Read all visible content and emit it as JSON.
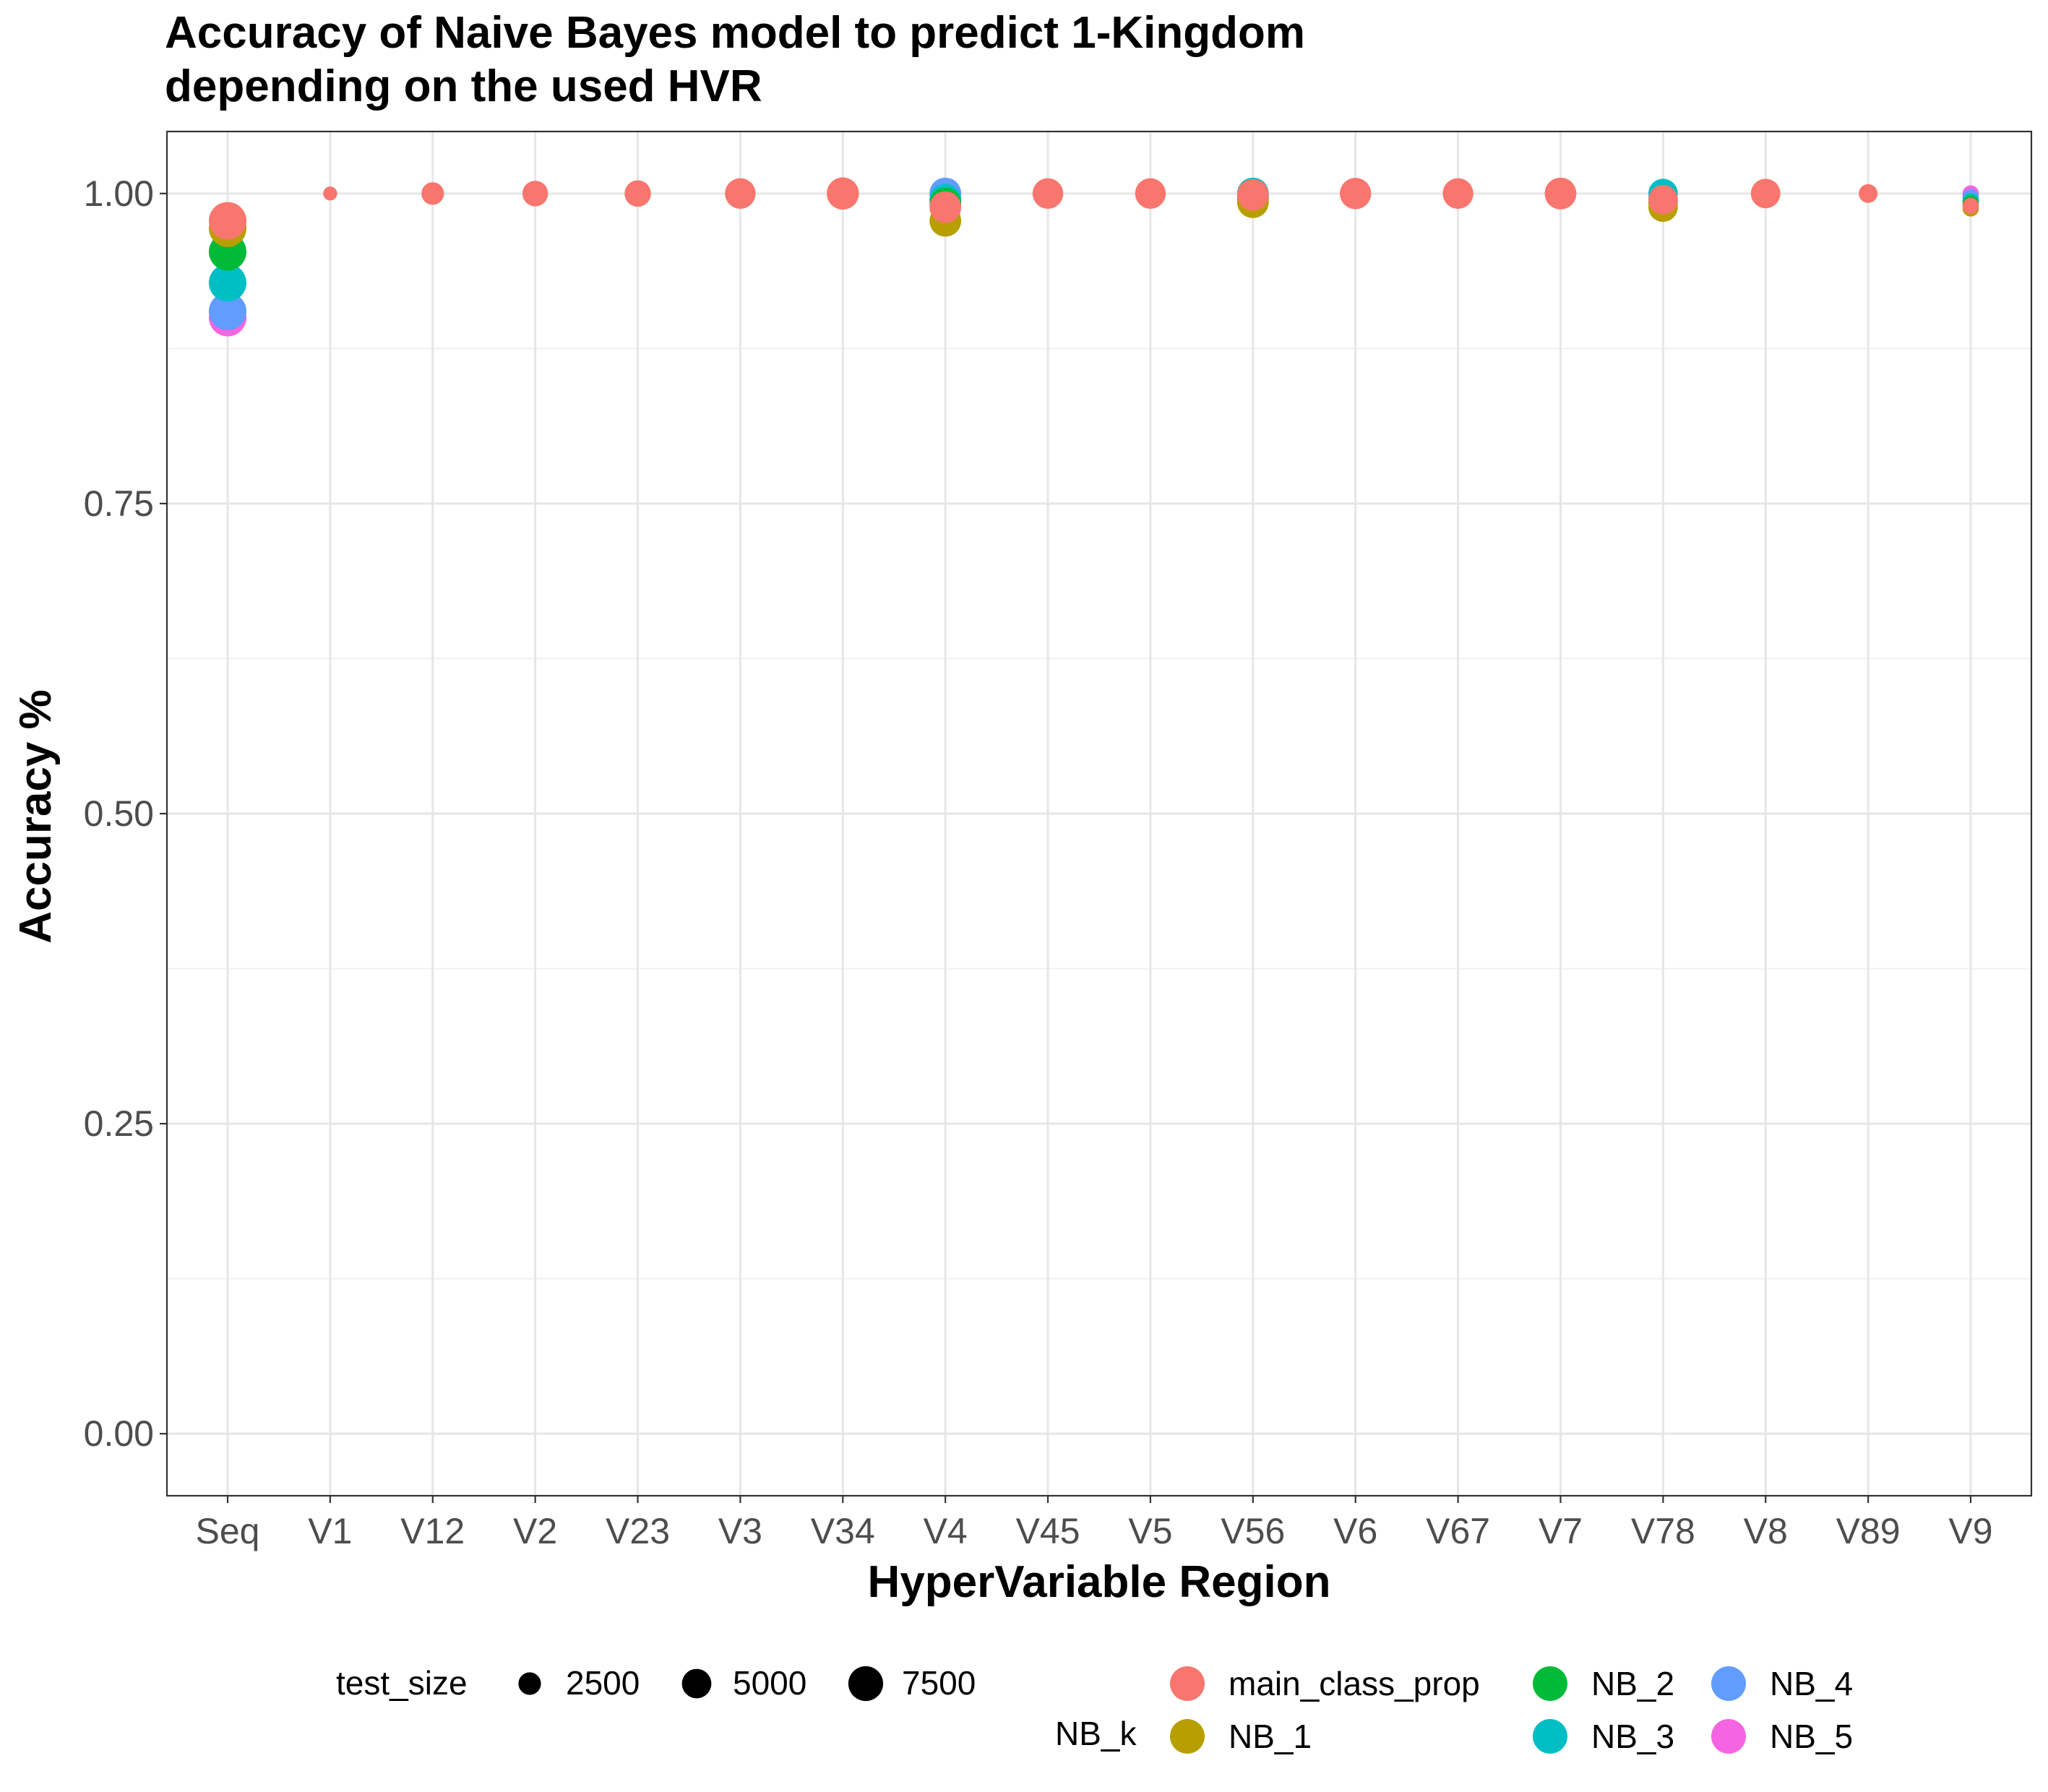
{
  "chart_data": {
    "type": "scatter",
    "title_line1": "Accuracy of Naive Bayes model to predict 1-Kingdom",
    "title_line2": "depending on the used HVR",
    "xlabel": "HyperVariable Region",
    "ylabel": "Accuracy %",
    "categories": [
      "Seq",
      "V1",
      "V12",
      "V2",
      "V23",
      "V3",
      "V34",
      "V4",
      "V45",
      "V5",
      "V56",
      "V6",
      "V67",
      "V7",
      "V78",
      "V8",
      "V89",
      "V9"
    ],
    "y_ticks": [
      "0.00",
      "0.25",
      "0.50",
      "0.75",
      "1.00"
    ],
    "ylim": [
      -0.05,
      1.05
    ],
    "grid": true,
    "size_legend": {
      "title": "test_size",
      "entries": [
        {
          "label": "2500",
          "value": 2500
        },
        {
          "label": "5000",
          "value": 5000
        },
        {
          "label": "7500",
          "value": 7500
        }
      ]
    },
    "color_legend": {
      "title": "NB_k",
      "entries": [
        {
          "label": "main_class_prop",
          "color": "#F8766D"
        },
        {
          "label": "NB_1",
          "color": "#B79F00"
        },
        {
          "label": "NB_2",
          "color": "#00BA38"
        },
        {
          "label": "NB_3",
          "color": "#00BFC4"
        },
        {
          "label": "NB_4",
          "color": "#619CFF"
        },
        {
          "label": "NB_5",
          "color": "#F564E3"
        }
      ]
    },
    "series": [
      {
        "name": "NB_5",
        "color": "#F564E3",
        "points": [
          {
            "x": "Seq",
            "y": 0.9,
            "size": 9000
          },
          {
            "x": "V4",
            "y": 0.995,
            "size": 6000
          },
          {
            "x": "V56",
            "y": 0.998,
            "size": 6000
          },
          {
            "x": "V78",
            "y": 0.995,
            "size": 5000
          },
          {
            "x": "V9",
            "y": 1.0,
            "size": 1000
          }
        ]
      },
      {
        "name": "NB_4",
        "color": "#619CFF",
        "points": [
          {
            "x": "Seq",
            "y": 0.905,
            "size": 9000
          },
          {
            "x": "V4",
            "y": 1.0,
            "size": 6000
          },
          {
            "x": "V56",
            "y": 0.998,
            "size": 6000
          },
          {
            "x": "V78",
            "y": 0.995,
            "size": 5000
          },
          {
            "x": "V9",
            "y": 0.997,
            "size": 1000
          }
        ]
      },
      {
        "name": "NB_3",
        "color": "#00BFC4",
        "points": [
          {
            "x": "Seq",
            "y": 0.928,
            "size": 9000
          },
          {
            "x": "V4",
            "y": 0.995,
            "size": 6000
          },
          {
            "x": "V56",
            "y": 1.0,
            "size": 6000
          },
          {
            "x": "V78",
            "y": 1.0,
            "size": 5000
          },
          {
            "x": "V9",
            "y": 0.994,
            "size": 1000
          }
        ]
      },
      {
        "name": "NB_2",
        "color": "#00BA38",
        "points": [
          {
            "x": "Seq",
            "y": 0.953,
            "size": 9000
          },
          {
            "x": "V4",
            "y": 0.992,
            "size": 6000
          },
          {
            "x": "V56",
            "y": 0.996,
            "size": 6000
          },
          {
            "x": "V78",
            "y": 0.993,
            "size": 5000
          },
          {
            "x": "V9",
            "y": 0.992,
            "size": 1000
          }
        ]
      },
      {
        "name": "NB_1",
        "color": "#B79F00",
        "points": [
          {
            "x": "Seq",
            "y": 0.972,
            "size": 9000
          },
          {
            "x": "V4",
            "y": 0.978,
            "size": 6000
          },
          {
            "x": "V56",
            "y": 0.993,
            "size": 6000
          },
          {
            "x": "V78",
            "y": 0.989,
            "size": 5000
          },
          {
            "x": "V9",
            "y": 0.988,
            "size": 1000
          }
        ]
      },
      {
        "name": "main_class_prop",
        "color": "#F8766D",
        "points": [
          {
            "x": "Seq",
            "y": 0.978,
            "size": 9000
          },
          {
            "x": "V1",
            "y": 1.0,
            "size": 600
          },
          {
            "x": "V12",
            "y": 1.0,
            "size": 2500
          },
          {
            "x": "V2",
            "y": 1.0,
            "size": 3500
          },
          {
            "x": "V23",
            "y": 1.0,
            "size": 3800
          },
          {
            "x": "V3",
            "y": 1.0,
            "size": 5500
          },
          {
            "x": "V34",
            "y": 1.0,
            "size": 6200
          },
          {
            "x": "V4",
            "y": 0.989,
            "size": 6000
          },
          {
            "x": "V45",
            "y": 1.0,
            "size": 5500
          },
          {
            "x": "V5",
            "y": 1.0,
            "size": 5500
          },
          {
            "x": "V56",
            "y": 0.999,
            "size": 6000
          },
          {
            "x": "V6",
            "y": 1.0,
            "size": 5800
          },
          {
            "x": "V67",
            "y": 1.0,
            "size": 5500
          },
          {
            "x": "V7",
            "y": 1.0,
            "size": 6000
          },
          {
            "x": "V78",
            "y": 0.995,
            "size": 5000
          },
          {
            "x": "V8",
            "y": 1.0,
            "size": 5000
          },
          {
            "x": "V89",
            "y": 1.0,
            "size": 1500
          },
          {
            "x": "V9",
            "y": 0.99,
            "size": 1000
          }
        ]
      }
    ]
  }
}
